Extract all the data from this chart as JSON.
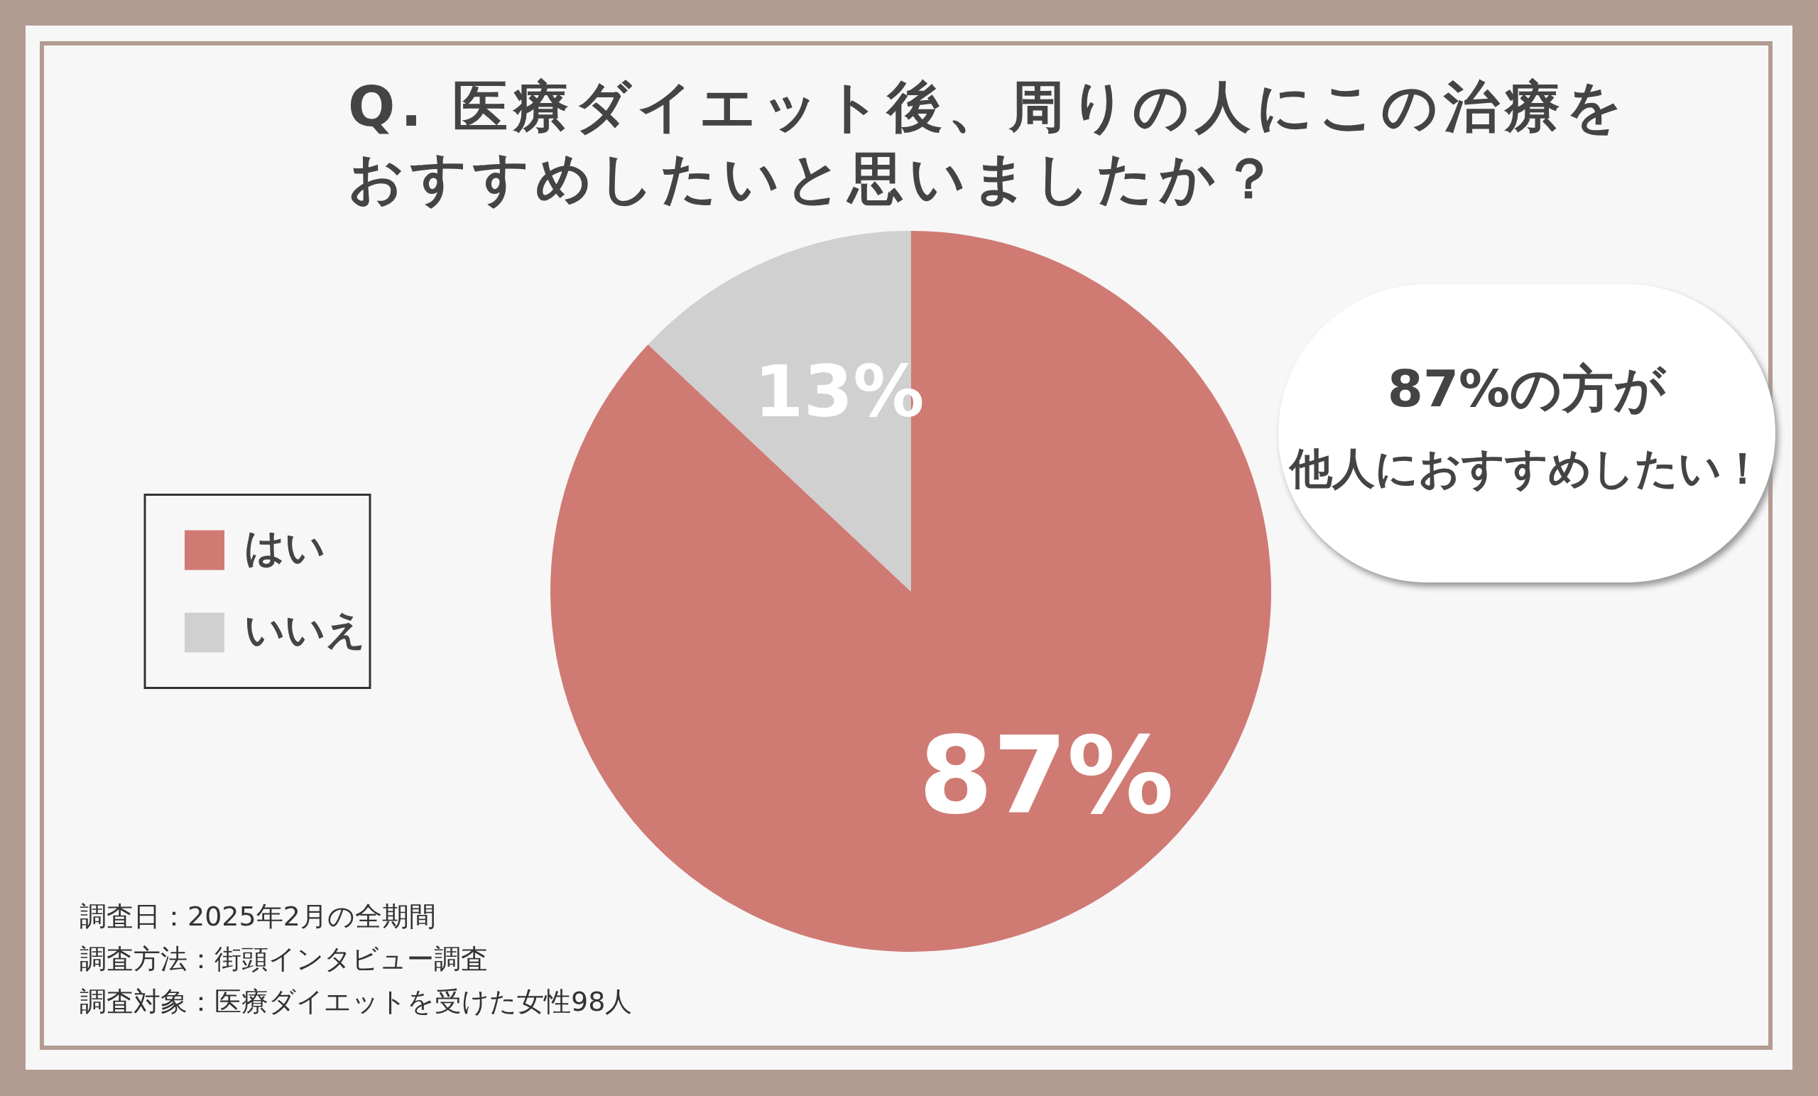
{
  "chart_data": {
    "type": "pie",
    "title": "Q. 医療ダイエット後、周りの人にこの治療をおすすめしたいと思いましたか？",
    "categories": [
      "はい",
      "いいえ"
    ],
    "values": [
      87,
      13
    ],
    "colors": [
      "#d07a74",
      "#d0d0d0"
    ],
    "value_labels": [
      "87%",
      "13%"
    ],
    "legend": "left",
    "annotations": [
      "87%の方が",
      "他人におすすめしたい！",
      "調査日：2025年2月の全期間",
      "調査方法：街頭インタビュー調査",
      "調査対象：医療ダイエットを受けた女性98人"
    ]
  }
}
